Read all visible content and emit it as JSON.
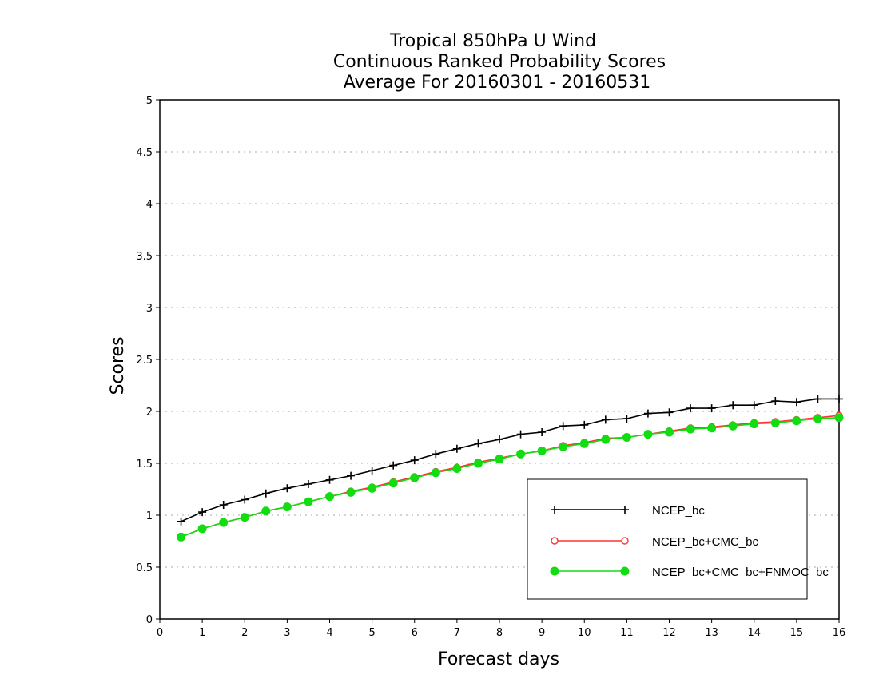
{
  "chart_data": {
    "type": "line",
    "title": [
      "Tropical 850hPa U Wind",
      "Continuous Ranked Probability Scores",
      "Average For 20160301 - 20160531"
    ],
    "xlabel": "Forecast days",
    "ylabel": "Scores",
    "xlim": [
      0,
      16
    ],
    "ylim": [
      0,
      5
    ],
    "xticks": [
      "0",
      "1",
      "2",
      "3",
      "4",
      "5",
      "6",
      "7",
      "8",
      "9",
      "10",
      "11",
      "12",
      "13",
      "14",
      "15",
      "16"
    ],
    "yticks": [
      "0",
      "0.5",
      "1",
      "1.5",
      "2",
      "2.5",
      "3",
      "3.5",
      "4",
      "4.5",
      "5"
    ],
    "grid": "horizontal-dotted",
    "legend_position": "bottom-right",
    "x": [
      0.5,
      1,
      1.5,
      2,
      2.5,
      3,
      3.5,
      4,
      4.5,
      5,
      5.5,
      6,
      6.5,
      7,
      7.5,
      8,
      8.5,
      9,
      9.5,
      10,
      10.5,
      11,
      11.5,
      12,
      12.5,
      13,
      13.5,
      14,
      14.5,
      15,
      15.5,
      16
    ],
    "series": [
      {
        "name": "NCEP_bc",
        "color": "#000000",
        "marker": "plus",
        "values": [
          0.94,
          1.03,
          1.1,
          1.15,
          1.21,
          1.26,
          1.3,
          1.34,
          1.38,
          1.43,
          1.48,
          1.53,
          1.59,
          1.64,
          1.69,
          1.73,
          1.78,
          1.8,
          1.86,
          1.87,
          1.92,
          1.93,
          1.98,
          1.99,
          2.03,
          2.03,
          2.06,
          2.06,
          2.1,
          2.09,
          2.12,
          2.12
        ]
      },
      {
        "name": "NCEP_bc+CMC_bc",
        "color": "#ff3333",
        "marker": "open-circle",
        "values": [
          0.79,
          0.87,
          0.93,
          0.98,
          1.04,
          1.08,
          1.13,
          1.18,
          1.23,
          1.27,
          1.32,
          1.37,
          1.42,
          1.46,
          1.51,
          1.55,
          1.59,
          1.62,
          1.67,
          1.7,
          1.74,
          1.75,
          1.78,
          1.81,
          1.84,
          1.85,
          1.87,
          1.89,
          1.9,
          1.92,
          1.94,
          1.96
        ]
      },
      {
        "name": "NCEP_bc+CMC_bc+FNMOC_bc",
        "color": "#11dd11",
        "marker": "filled-circle",
        "values": [
          0.79,
          0.87,
          0.93,
          0.98,
          1.04,
          1.08,
          1.13,
          1.18,
          1.22,
          1.26,
          1.31,
          1.36,
          1.41,
          1.45,
          1.5,
          1.54,
          1.59,
          1.62,
          1.66,
          1.69,
          1.73,
          1.75,
          1.78,
          1.8,
          1.83,
          1.84,
          1.86,
          1.88,
          1.89,
          1.91,
          1.93,
          1.94
        ]
      }
    ]
  }
}
